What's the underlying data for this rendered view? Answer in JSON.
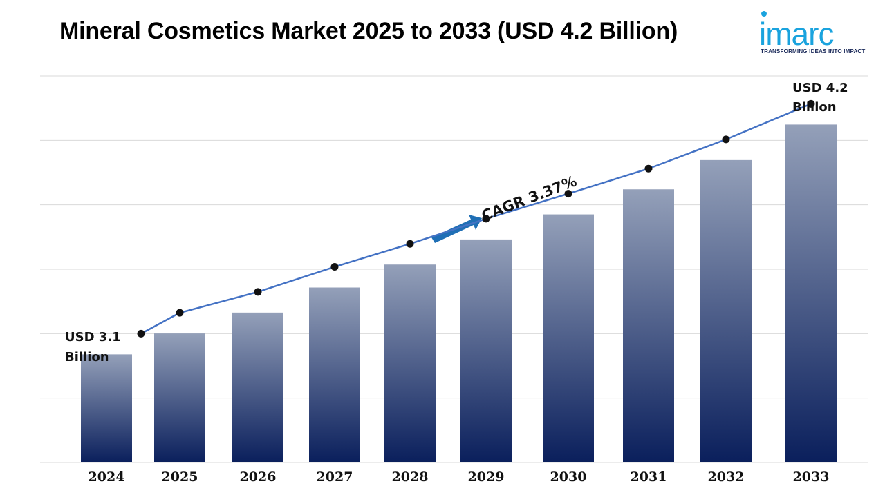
{
  "header": {
    "title": "Mineral Cosmetics Market 2025 to 2033 (USD 4.2 Billion)"
  },
  "logo": {
    "word": "imarc",
    "tagline": "TRANSFORMING IDEAS INTO IMPACT",
    "color": "#1aa3de"
  },
  "chart_data": {
    "type": "bar",
    "categories": [
      "2024",
      "2025",
      "2026",
      "2027",
      "2028",
      "2029",
      "2030",
      "2031",
      "2032",
      "2033"
    ],
    "values": [
      3.1,
      3.2,
      3.3,
      3.42,
      3.53,
      3.65,
      3.77,
      3.89,
      4.03,
      4.2
    ],
    "line_overlay": true,
    "ylim": [
      2.5,
      4.35
    ],
    "grid": true,
    "colors": {
      "bar_top": "#94a0b9",
      "bar_bottom": "#0a1f5c",
      "line": "#4472c4",
      "arrow": "#1f6fb5"
    },
    "annotations": {
      "start_label": [
        "USD 3.1",
        "Billion"
      ],
      "end_label": [
        "USD 4.2",
        "Billion"
      ],
      "cagr": "CAGR 3.37%"
    }
  }
}
